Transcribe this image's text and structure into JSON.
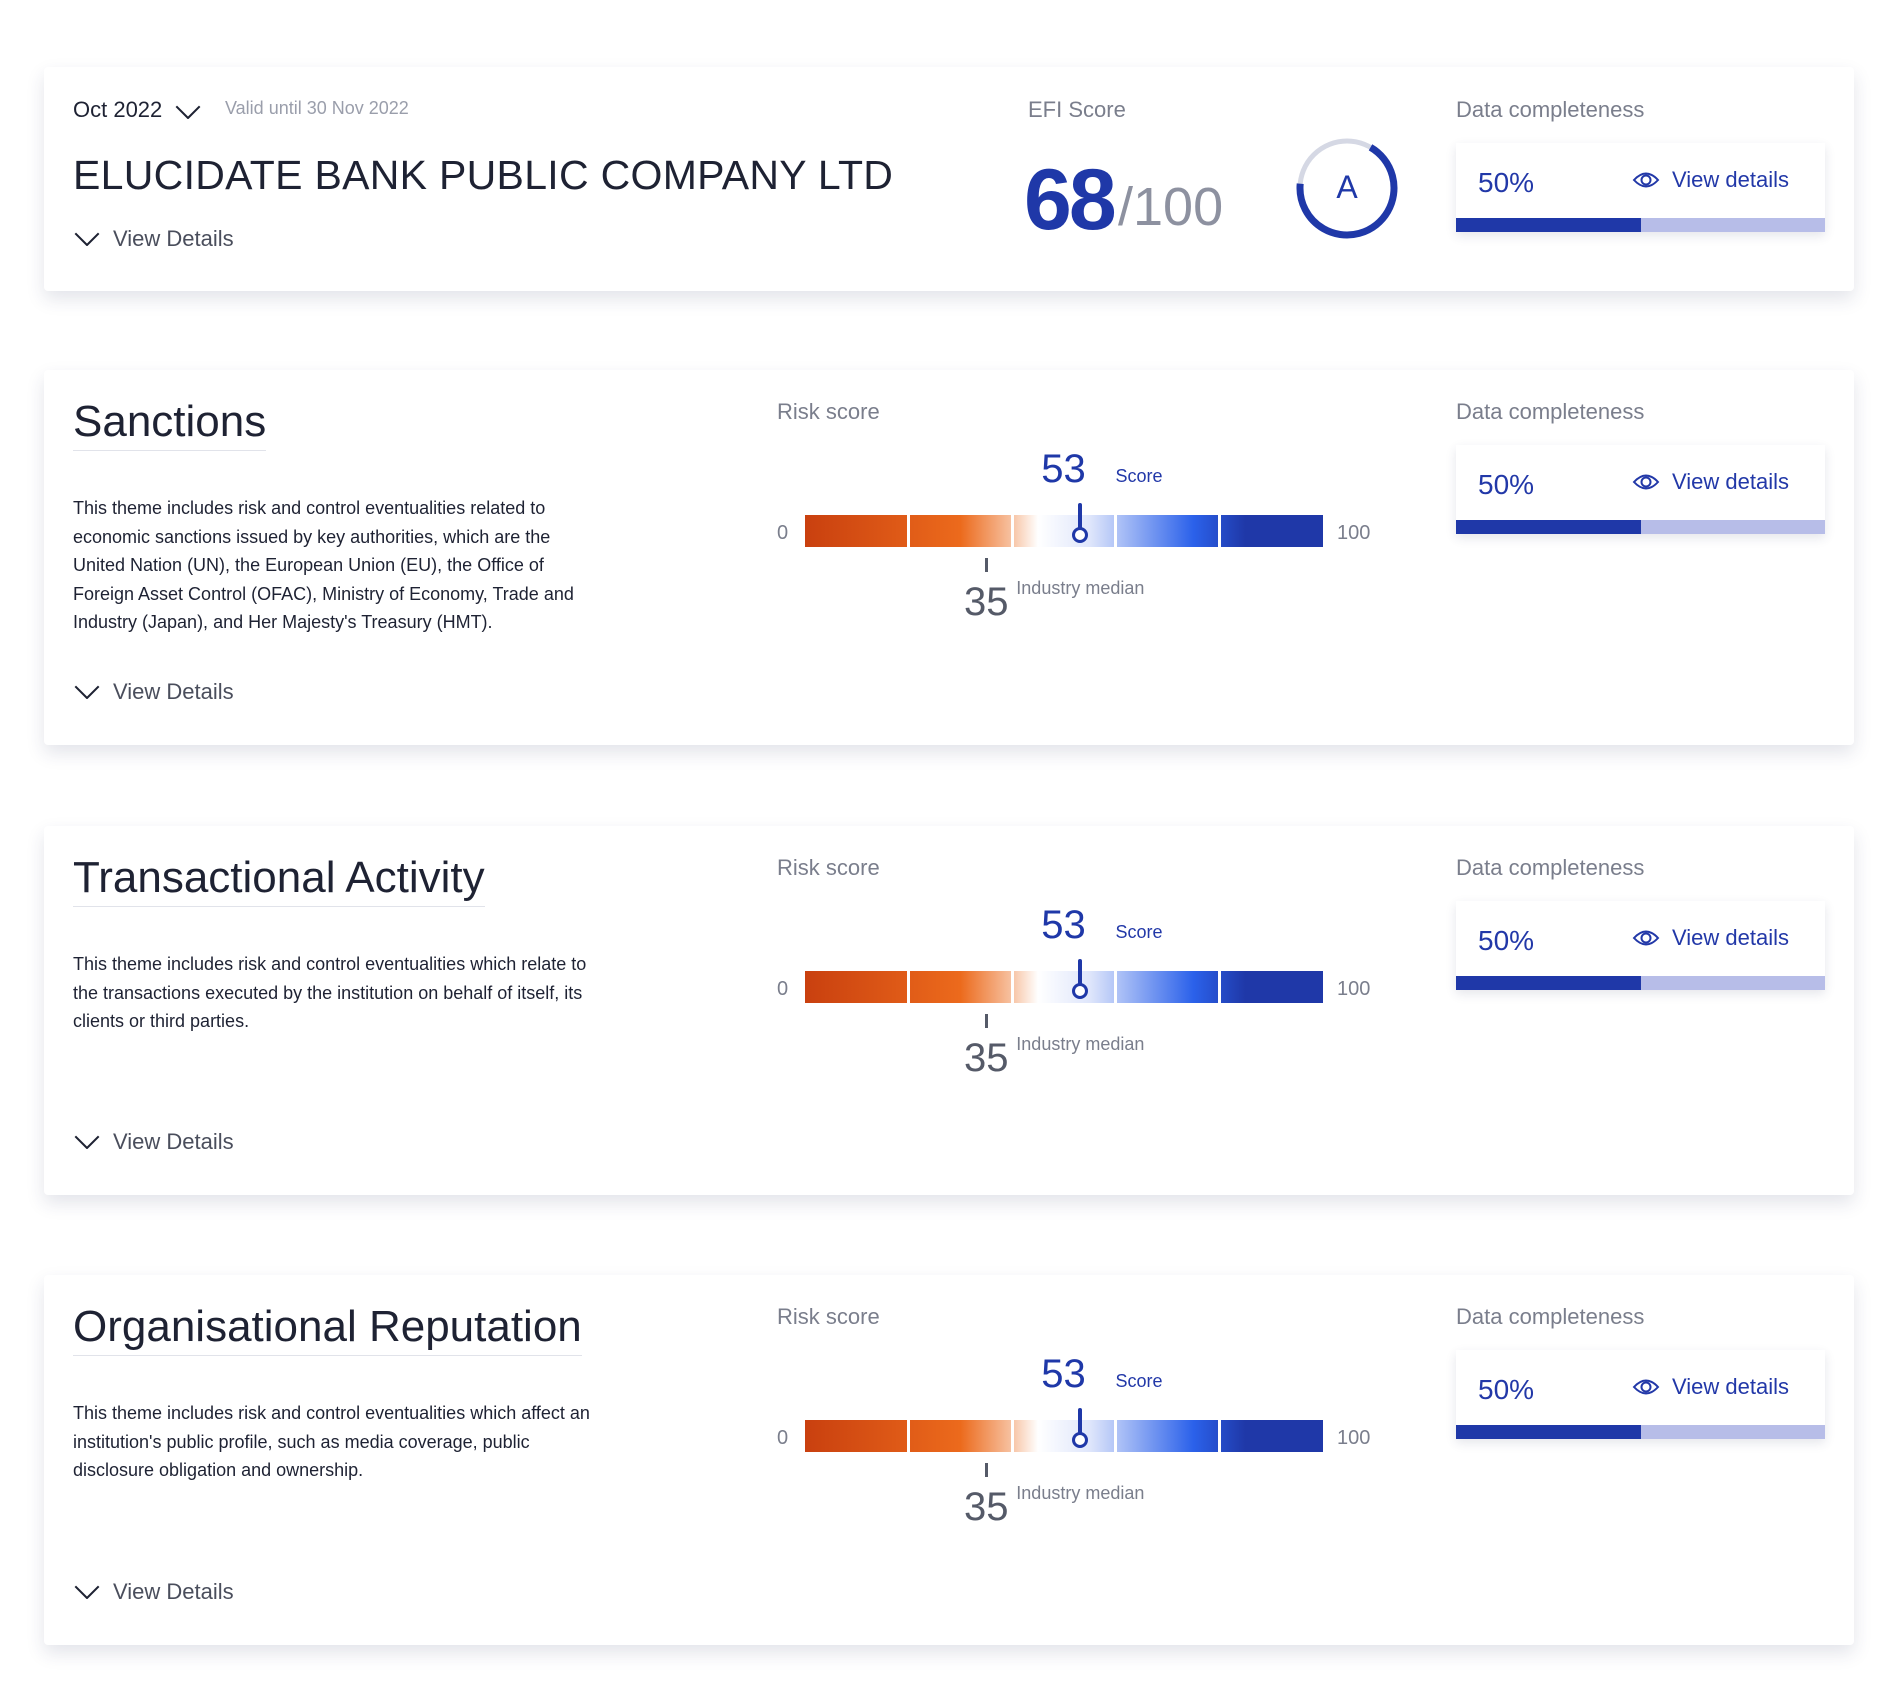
{
  "header": {
    "period": "Oct 2022",
    "valid_until": "Valid until 30 Nov 2022",
    "company": "ELUCIDATE BANK PUBLIC COMPANY LTD",
    "view_details": "View Details",
    "efi_label": "EFI Score",
    "efi_score": 68,
    "efi_max": {
      "value": 100,
      "label": "/100"
    },
    "grade": "A",
    "completeness_label": "Data completeness",
    "completeness": {
      "value": 50,
      "label": "50%"
    },
    "completeness_link": "View details"
  },
  "sections": [
    {
      "title": "Sanctions",
      "description": "This theme includes risk and control eventualities related to economic sanctions issued by key authorities, which are the United Nation (UN), the European Union (EU), the Office of Foreign Asset Control (OFAC), Ministry of Economy, Trade and Industry (Japan), and Her Majesty's Treasury (HMT).",
      "risk_label": "Risk score",
      "scale_min": 0,
      "scale_max": 100,
      "score": 53,
      "score_label": "Score",
      "median": 35,
      "median_label": "Industry median",
      "completeness_label": "Data completeness",
      "completeness": {
        "value": 50,
        "label": "50%"
      },
      "completeness_link": "View details",
      "view_details": "View Details"
    },
    {
      "title": "Transactional Activity",
      "description": "This theme includes risk and control eventualities which relate to the transactions executed by the institution on behalf of itself, its clients or third parties.",
      "risk_label": "Risk score",
      "scale_min": 0,
      "scale_max": 100,
      "score": 53,
      "score_label": "Score",
      "median": 35,
      "median_label": "Industry median",
      "completeness_label": "Data completeness",
      "completeness": {
        "value": 50,
        "label": "50%"
      },
      "completeness_link": "View details",
      "view_details": "View Details"
    },
    {
      "title": "Organisational Reputation",
      "description": "This theme includes risk and control eventualities which affect an institution's public profile, such as media coverage, public disclosure obligation and ownership.",
      "risk_label": "Risk score",
      "scale_min": 0,
      "scale_max": 100,
      "score": 53,
      "score_label": "Score",
      "median": 35,
      "median_label": "Industry median",
      "completeness_label": "Data completeness",
      "completeness": {
        "value": 50,
        "label": "50%"
      },
      "completeness_link": "View details",
      "view_details": "View Details"
    }
  ]
}
